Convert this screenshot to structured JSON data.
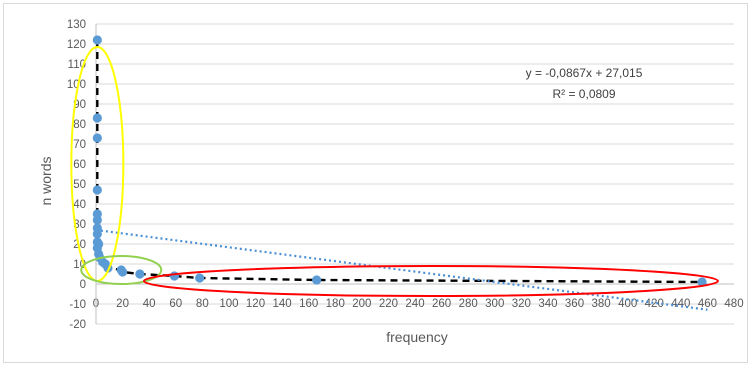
{
  "chart_data": {
    "type": "scatter",
    "xlabel": "frequency",
    "ylabel": "n words",
    "xlim": [
      0,
      480
    ],
    "ylim": [
      -20,
      130
    ],
    "x_ticks": [
      "0",
      "20",
      "40",
      "60",
      "80",
      "100",
      "120",
      "140",
      "160",
      "180",
      "200",
      "220",
      "240",
      "260",
      "280",
      "300",
      "320",
      "340",
      "360",
      "380",
      "400",
      "420",
      "440",
      "460",
      "480"
    ],
    "y_ticks": [
      "130",
      "120",
      "110",
      "100",
      "90",
      "80",
      "70",
      "60",
      "50",
      "40",
      "30",
      "20",
      "10",
      "0",
      "-10",
      "-20"
    ],
    "grid": "horizontal",
    "points": [
      {
        "x": 1,
        "y": 122
      },
      {
        "x": 1,
        "y": 83
      },
      {
        "x": 1,
        "y": 73
      },
      {
        "x": 1,
        "y": 47
      },
      {
        "x": 1,
        "y": 35
      },
      {
        "x": 1,
        "y": 32
      },
      {
        "x": 1,
        "y": 28
      },
      {
        "x": 1,
        "y": 25
      },
      {
        "x": 1,
        "y": 21
      },
      {
        "x": 2,
        "y": 20
      },
      {
        "x": 1,
        "y": 18
      },
      {
        "x": 2,
        "y": 15
      },
      {
        "x": 3,
        "y": 13
      },
      {
        "x": 5,
        "y": 11
      },
      {
        "x": 7,
        "y": 10
      },
      {
        "x": 9,
        "y": 8
      },
      {
        "x": 19,
        "y": 7
      },
      {
        "x": 20,
        "y": 6
      },
      {
        "x": 33,
        "y": 5
      },
      {
        "x": 59,
        "y": 4
      },
      {
        "x": 78,
        "y": 3
      },
      {
        "x": 166,
        "y": 2
      },
      {
        "x": 456,
        "y": 1
      }
    ],
    "trendline": {
      "slope": -0.0867,
      "intercept": 27.015,
      "equation": "y = -0,0867x + 27,015",
      "r2": "R² = 0,0809",
      "color": "#4a8fd6"
    },
    "point_color": "#5b9bd5",
    "ellipses": [
      {
        "color": "#ffff00"
      },
      {
        "color": "#92d050"
      },
      {
        "color": "#ff0000"
      }
    ]
  }
}
